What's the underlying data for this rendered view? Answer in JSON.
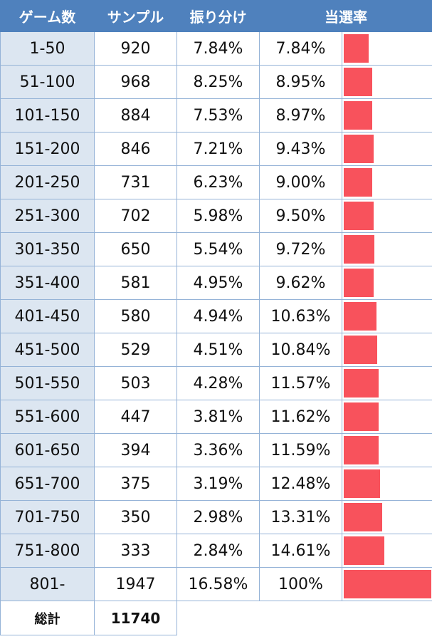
{
  "table": {
    "headers": [
      "ゲーム数",
      "サンプル",
      "振り分け",
      "当選率"
    ],
    "rows": [
      {
        "games": "1-50",
        "sample": "920",
        "share": "7.84%",
        "rate": "7.84%",
        "rate_value": 7.84
      },
      {
        "games": "51-100",
        "sample": "968",
        "share": "8.25%",
        "rate": "8.95%",
        "rate_value": 8.95
      },
      {
        "games": "101-150",
        "sample": "884",
        "share": "7.53%",
        "rate": "8.97%",
        "rate_value": 8.97
      },
      {
        "games": "151-200",
        "sample": "846",
        "share": "7.21%",
        "rate": "9.43%",
        "rate_value": 9.43
      },
      {
        "games": "201-250",
        "sample": "731",
        "share": "6.23%",
        "rate": "9.00%",
        "rate_value": 9.0
      },
      {
        "games": "251-300",
        "sample": "702",
        "share": "5.98%",
        "rate": "9.50%",
        "rate_value": 9.5
      },
      {
        "games": "301-350",
        "sample": "650",
        "share": "5.54%",
        "rate": "9.72%",
        "rate_value": 9.72
      },
      {
        "games": "351-400",
        "sample": "581",
        "share": "4.95%",
        "rate": "9.62%",
        "rate_value": 9.62
      },
      {
        "games": "401-450",
        "sample": "580",
        "share": "4.94%",
        "rate": "10.63%",
        "rate_value": 10.63
      },
      {
        "games": "451-500",
        "sample": "529",
        "share": "4.51%",
        "rate": "10.84%",
        "rate_value": 10.84
      },
      {
        "games": "501-550",
        "sample": "503",
        "share": "4.28%",
        "rate": "11.57%",
        "rate_value": 11.57
      },
      {
        "games": "551-600",
        "sample": "447",
        "share": "3.81%",
        "rate": "11.62%",
        "rate_value": 11.62
      },
      {
        "games": "601-650",
        "sample": "394",
        "share": "3.36%",
        "rate": "11.59%",
        "rate_value": 11.59
      },
      {
        "games": "651-700",
        "sample": "375",
        "share": "3.19%",
        "rate": "12.48%",
        "rate_value": 12.48
      },
      {
        "games": "701-750",
        "sample": "350",
        "share": "2.98%",
        "rate": "13.31%",
        "rate_value": 13.31
      },
      {
        "games": "751-800",
        "sample": "333",
        "share": "2.84%",
        "rate": "14.61%",
        "rate_value": 14.61
      },
      {
        "games": "801-",
        "sample": "1947",
        "share": "16.58%",
        "rate": "100%",
        "rate_value": 100
      }
    ],
    "total": {
      "label": "総計",
      "value": "11740"
    },
    "colors": {
      "header": "#4f81bd",
      "first_column": "#dce6f1",
      "bar": "#f8525c",
      "border": "#95b3d7"
    }
  }
}
